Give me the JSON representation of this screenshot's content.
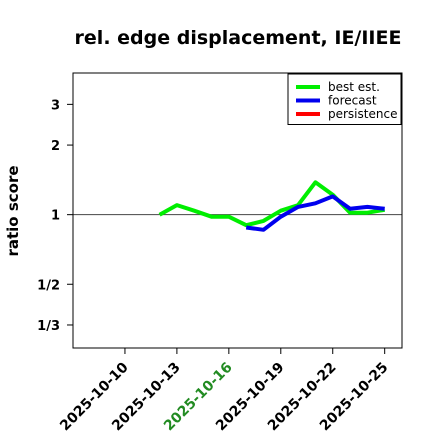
{
  "chart_data": {
    "type": "line",
    "title": "rel. edge displacement, IE/IIEE",
    "xlabel": "",
    "ylabel": "ratio score",
    "y_scale": "log",
    "xlim": [
      "2025-10-07",
      "2025-10-26"
    ],
    "ylim": [
      0.265,
      4.1
    ],
    "y_ticks": [
      {
        "value": 0.3333,
        "label": "1/3"
      },
      {
        "value": 0.5,
        "label": "1/2"
      },
      {
        "value": 1,
        "label": "1"
      },
      {
        "value": 2,
        "label": "2"
      },
      {
        "value": 3,
        "label": "3"
      }
    ],
    "x_ticks": [
      {
        "date": "2025-10-10",
        "label": "2025-10-10",
        "color": "#000000"
      },
      {
        "date": "2025-10-13",
        "label": "2025-10-13",
        "color": "#000000"
      },
      {
        "date": "2025-10-16",
        "label": "2025-10-16",
        "color": "#228B22"
      },
      {
        "date": "2025-10-19",
        "label": "2025-10-19",
        "color": "#000000"
      },
      {
        "date": "2025-10-22",
        "label": "2025-10-22",
        "color": "#000000"
      },
      {
        "date": "2025-10-25",
        "label": "2025-10-25",
        "color": "#000000"
      }
    ],
    "reference_line": 1,
    "legend_position": "top-right",
    "series": [
      {
        "name": "best est.",
        "color": "#00EE00",
        "x": [
          "2025-10-12",
          "2025-10-13",
          "2025-10-14",
          "2025-10-15",
          "2025-10-16",
          "2025-10-17",
          "2025-10-18",
          "2025-10-19",
          "2025-10-20",
          "2025-10-21",
          "2025-10-22",
          "2025-10-23",
          "2025-10-24",
          "2025-10-25"
        ],
        "values": [
          1.0,
          1.1,
          1.04,
          0.98,
          0.98,
          0.9,
          0.94,
          1.04,
          1.1,
          1.38,
          1.22,
          1.02,
          1.02,
          1.05
        ]
      },
      {
        "name": "forecast",
        "color": "#0000EE",
        "x": [
          "2025-10-17",
          "2025-10-18",
          "2025-10-19",
          "2025-10-20",
          "2025-10-21",
          "2025-10-22",
          "2025-10-23",
          "2025-10-24",
          "2025-10-25"
        ],
        "values": [
          0.88,
          0.86,
          0.98,
          1.08,
          1.12,
          1.2,
          1.06,
          1.08,
          1.06
        ]
      },
      {
        "name": "persistence",
        "color": "#FF0000",
        "x": [],
        "values": []
      }
    ]
  }
}
